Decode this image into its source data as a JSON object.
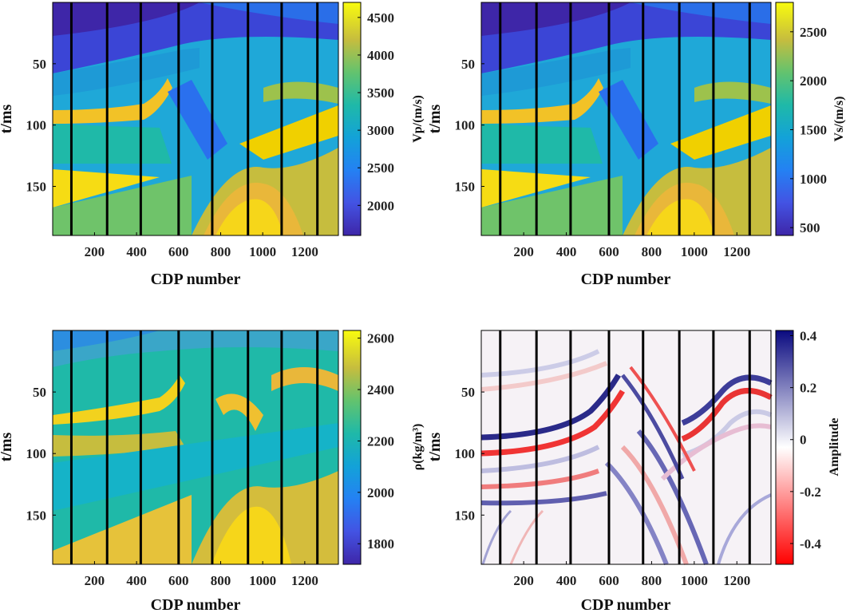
{
  "chart_data": [
    {
      "type": "heatmap",
      "id": "vp",
      "title": "",
      "xlabel": "CDP number",
      "ylabel": "t/ms",
      "colorbar_label": "Vp/(m/s)",
      "xlim": [
        1,
        1360
      ],
      "ylim": [
        190,
        0
      ],
      "xticks": [
        200,
        400,
        600,
        800,
        1000,
        1200
      ],
      "yticks": [
        50,
        100,
        150
      ],
      "clim": [
        1600,
        4700
      ],
      "cticks": [
        2000,
        2500,
        3000,
        3500,
        4000,
        4500
      ],
      "colormap": "parula",
      "well_lines_cdp": [
        90,
        260,
        420,
        600,
        760,
        930,
        1090,
        1260
      ]
    },
    {
      "type": "heatmap",
      "id": "vs",
      "title": "",
      "xlabel": "CDP number",
      "ylabel": "t/ms",
      "colorbar_label": "Vs/(m/s)",
      "xlim": [
        1,
        1360
      ],
      "ylim": [
        190,
        0
      ],
      "xticks": [
        200,
        400,
        600,
        800,
        1000,
        1200
      ],
      "yticks": [
        50,
        100,
        150
      ],
      "clim": [
        420,
        2800
      ],
      "cticks": [
        500,
        1000,
        1500,
        2000,
        2500
      ],
      "colormap": "parula",
      "well_lines_cdp": [
        90,
        260,
        420,
        600,
        760,
        930,
        1090,
        1260
      ]
    },
    {
      "type": "heatmap",
      "id": "rho",
      "title": "",
      "xlabel": "CDP number",
      "ylabel": "t/ms",
      "colorbar_label": "ρ(kg/m³)",
      "xlim": [
        1,
        1360
      ],
      "ylim": [
        190,
        0
      ],
      "xticks": [
        200,
        400,
        600,
        800,
        1000,
        1200
      ],
      "yticks": [
        50,
        100,
        150
      ],
      "clim": [
        1720,
        2630
      ],
      "cticks": [
        1800,
        2000,
        2200,
        2400,
        2600
      ],
      "colormap": "parula",
      "well_lines_cdp": [
        90,
        260,
        420,
        600,
        760,
        930,
        1090,
        1260
      ]
    },
    {
      "type": "heatmap",
      "id": "seismic",
      "title": "",
      "xlabel": "CDP number",
      "ylabel": "t/ms",
      "colorbar_label": "Amplitude",
      "xlim": [
        1,
        1360
      ],
      "ylim": [
        190,
        0
      ],
      "xticks": [
        200,
        400,
        600,
        800,
        1000,
        1200
      ],
      "yticks": [
        50,
        100,
        150
      ],
      "clim": [
        -0.48,
        0.42
      ],
      "cticks": [
        0.4,
        0.2,
        0,
        -0.2,
        -0.4
      ],
      "colormap": "red-white-blue",
      "well_lines_cdp": [
        90,
        260,
        420,
        600,
        760,
        930,
        1090,
        1260
      ]
    }
  ]
}
